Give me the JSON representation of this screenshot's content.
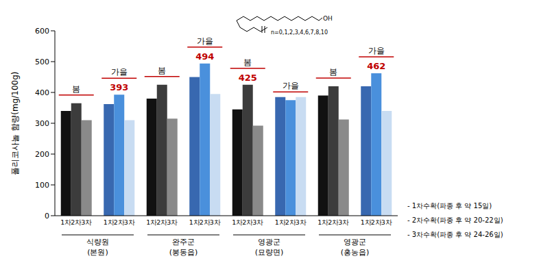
{
  "chart_data": {
    "type": "bar",
    "y_label": "폴리코사놀 함량(mg/100g)",
    "ylim": [
      0,
      600
    ],
    "yticks": [
      0,
      100,
      200,
      300,
      400,
      500,
      600
    ],
    "categories": [
      "봄",
      "가을",
      "봄",
      "가을",
      "봄",
      "가을",
      "봄",
      "가을"
    ],
    "locations": [
      {
        "name": "식량원",
        "sub": "(본원)"
      },
      {
        "name": "완주군",
        "sub": "(봉동읍)"
      },
      {
        "name": "영광군",
        "sub": "(묘량면)"
      },
      {
        "name": "영광군",
        "sub": "(홍농읍)"
      }
    ],
    "series": [
      {
        "name": "1차",
        "values": [
          340,
          362,
          380,
          450,
          345,
          385,
          390,
          420
        ],
        "colors": [
          "#111111",
          "#3868b0",
          "#111111",
          "#3868b0",
          "#111111",
          "#3868b0",
          "#111111",
          "#3868b0"
        ]
      },
      {
        "name": "2차",
        "values": [
          365,
          393,
          425,
          494,
          425,
          375,
          420,
          462
        ],
        "colors": [
          "#3c3c3c",
          "#4a90dc",
          "#3c3c3c",
          "#4a90dc",
          "#3c3c3c",
          "#4a90dc",
          "#3c3c3c",
          "#4a90dc"
        ],
        "value_labels": [
          null,
          "393",
          null,
          "494",
          "425",
          null,
          null,
          "462"
        ]
      },
      {
        "name": "3차",
        "values": [
          310,
          310,
          315,
          395,
          292,
          385,
          312,
          340
        ],
        "colors": [
          "#8a8a8a",
          "#c8dcf2",
          "#8a8a8a",
          "#c8dcf2",
          "#8a8a8a",
          "#c8dcf2",
          "#8a8a8a",
          "#c8dcf2"
        ]
      }
    ],
    "annotations": {
      "structure_group": "OH",
      "structure_n": "n=0,1,2,3,4,6,7,8,10"
    },
    "harvest_notes": [
      "-   1차수확(파종 후 약 15일)",
      "-   2차수확(파종 후 약 20-22일)",
      "-   3차수확(파종 후 약 24-26일)"
    ]
  }
}
